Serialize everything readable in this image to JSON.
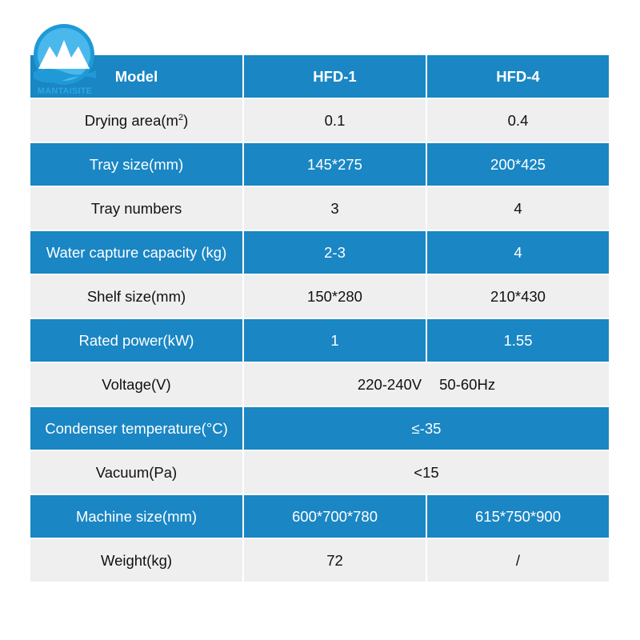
{
  "brand": {
    "logo_text": "MANTAISITE",
    "color": "#2aa7e0"
  },
  "colors": {
    "header_blue": "#1a86c4",
    "row_grey": "#efefef"
  },
  "table": {
    "header": {
      "label": "Model",
      "col1": "HFD-1",
      "col2": "HFD-4"
    },
    "rows": {
      "drying_area": {
        "label": "Drying area(m",
        "label_sup": "2",
        "label_end": ")",
        "col1": "0.1",
        "col2": "0.4"
      },
      "tray_size": {
        "label": "Tray size(mm)",
        "col1": "145*275",
        "col2": "200*425"
      },
      "tray_numbers": {
        "label": "Tray numbers",
        "col1": "3",
        "col2": "4"
      },
      "water_capture": {
        "label": "Water capture capacity (kg)",
        "col1": "2-3",
        "col2": "4"
      },
      "shelf_size": {
        "label": "Shelf size(mm)",
        "col1": "150*280",
        "col2": "210*430"
      },
      "rated_power": {
        "label": "Rated power(kW)",
        "col1": "1",
        "col2": "1.55"
      },
      "voltage": {
        "label": "Voltage(V)",
        "value_a": "220-240V",
        "value_b": "50-60Hz"
      },
      "condenser_temp": {
        "label": "Condenser temperature(°C)",
        "value": "≤-35"
      },
      "vacuum": {
        "label": "Vacuum(Pa)",
        "value": "<15"
      },
      "machine_size": {
        "label": "Machine size(mm)",
        "col1": "600*700*780",
        "col2": "615*750*900"
      },
      "weight": {
        "label": "Weight(kg)",
        "col1": "72",
        "col2": "/"
      }
    }
  }
}
